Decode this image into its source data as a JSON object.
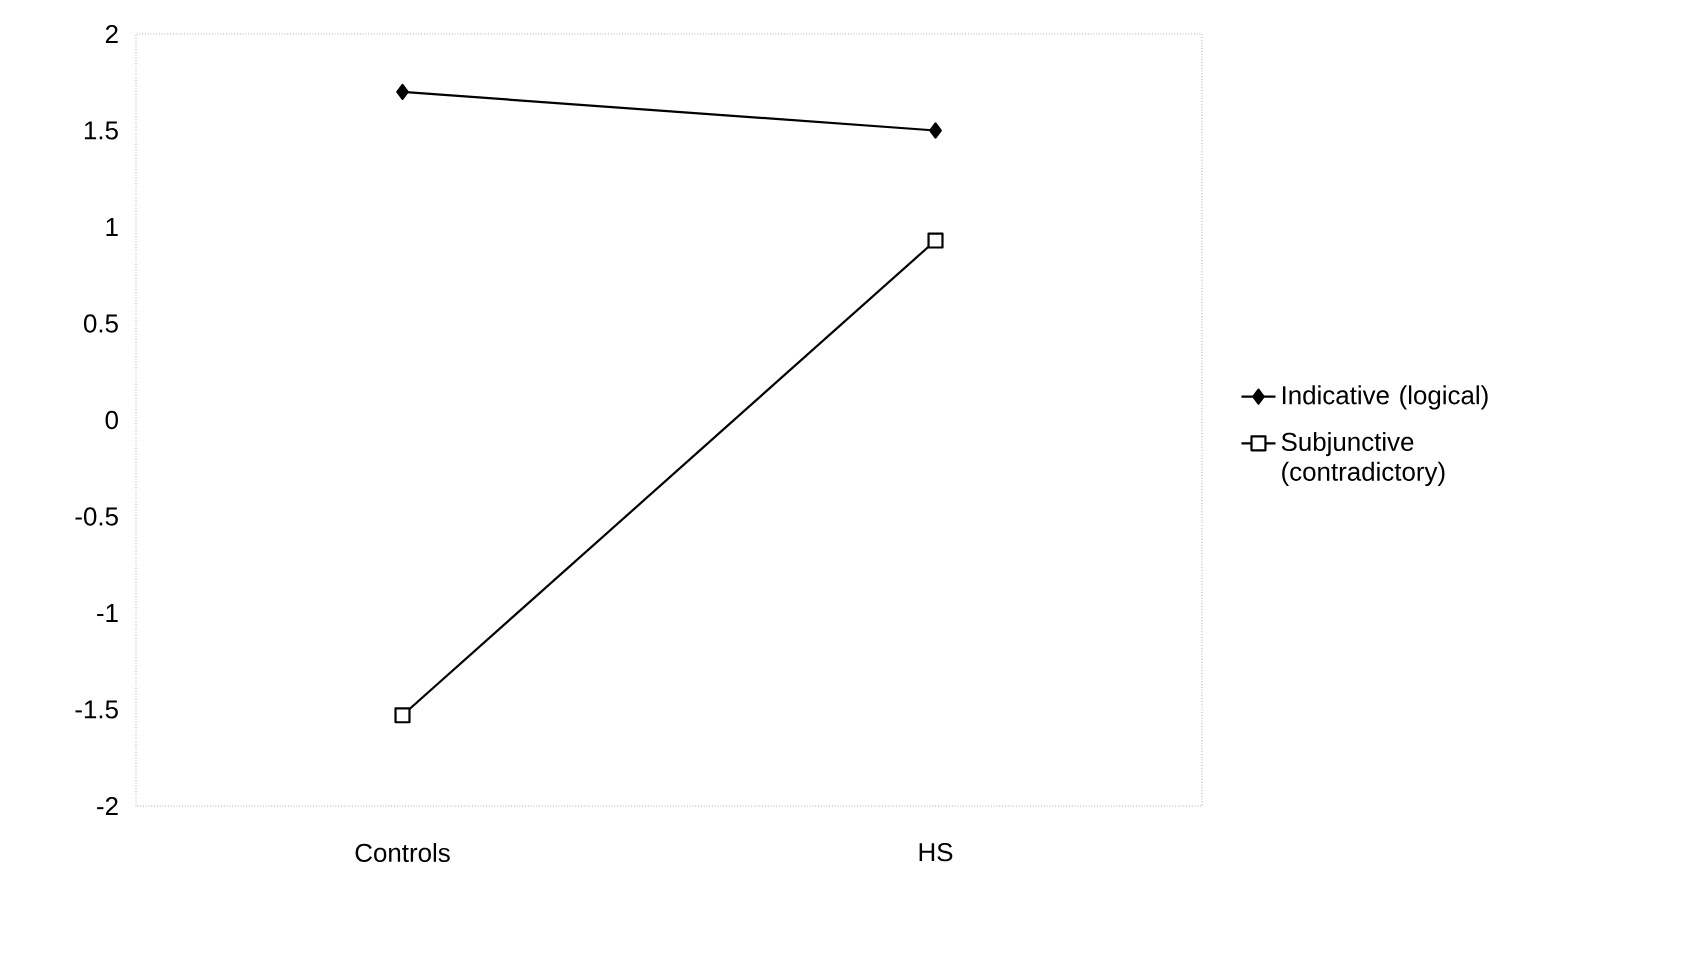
{
  "chart_data": {
    "type": "line",
    "categories": [
      "Controls",
      "HS"
    ],
    "series": [
      {
        "name": "Indicative (logical)",
        "color": "#000000",
        "marker": "diamond",
        "values": [
          1.7,
          1.5
        ]
      },
      {
        "name": "Subjunctive (contradictory)",
        "color": "#000000",
        "marker": "square",
        "values": [
          -1.53,
          0.93
        ]
      }
    ],
    "ylim": [
      -2,
      2
    ],
    "yticks": [
      -2,
      -1.5,
      -1,
      -0.5,
      0,
      0.5,
      1,
      1.5,
      2
    ],
    "legend": "right"
  }
}
